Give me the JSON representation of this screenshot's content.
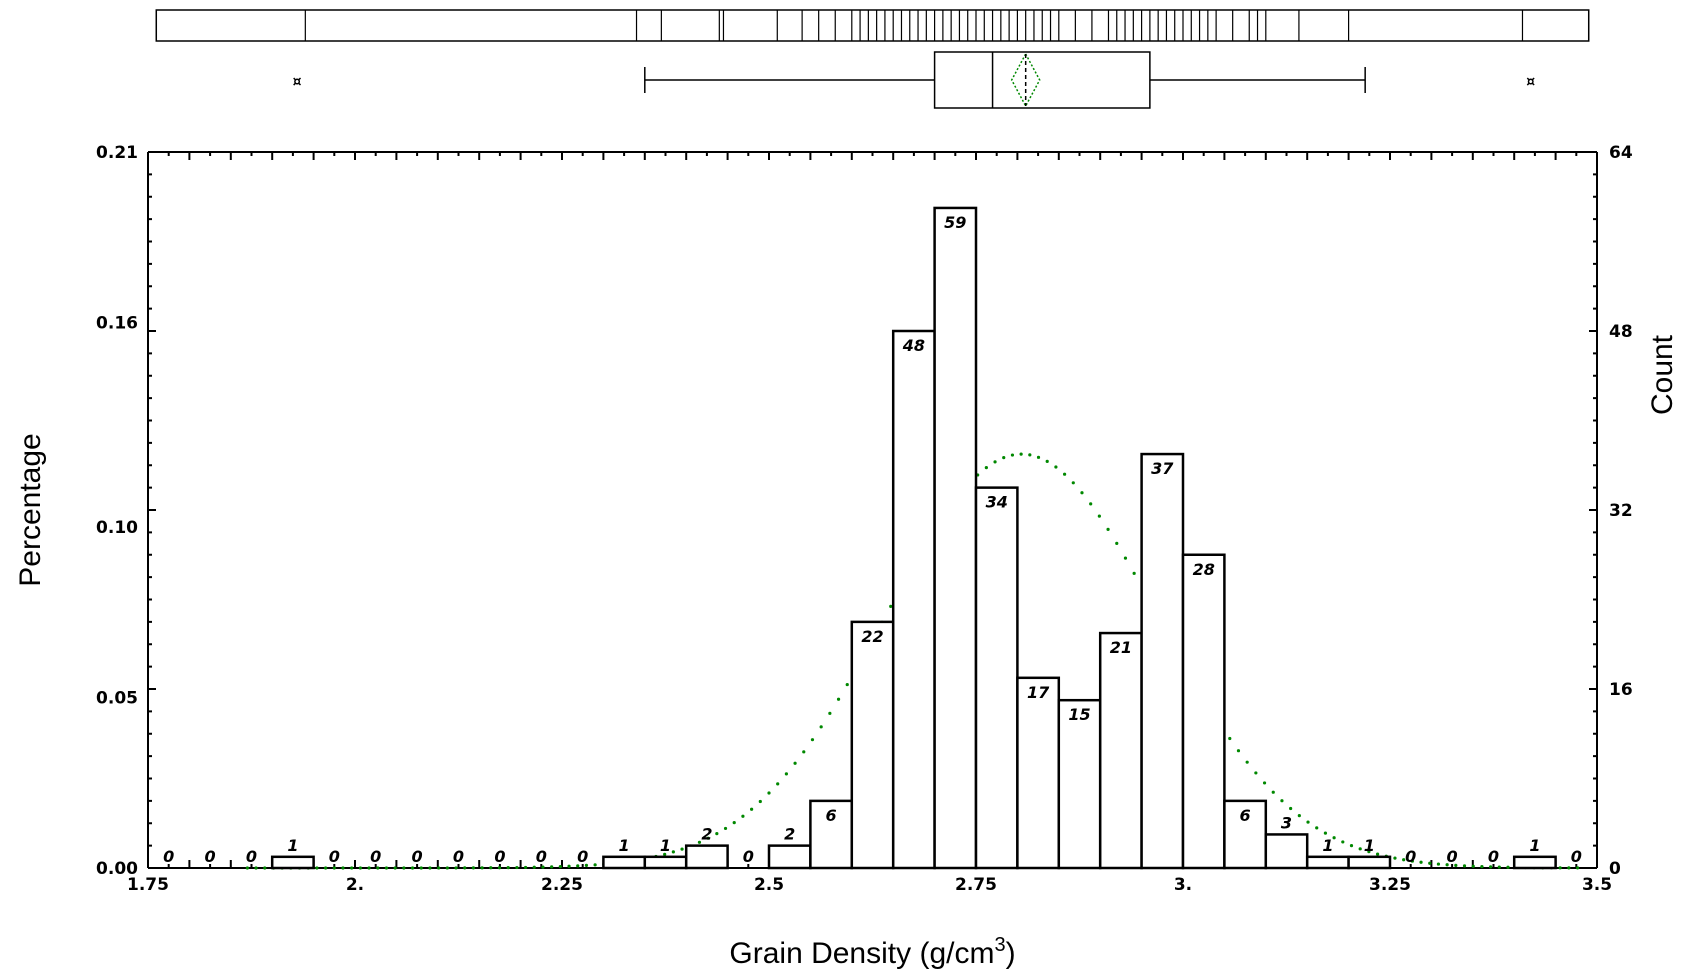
{
  "chart_data": {
    "type": "bar",
    "xlabel": "Grain Density (g/cm",
    "xlabel_superscript": "3",
    "xlabel_suffix": ")",
    "ylabel_left": "Percentage",
    "ylabel_right": "Count",
    "xlim": [
      1.75,
      3.5
    ],
    "ylim_left": [
      0,
      0.21
    ],
    "ylim_right": [
      0,
      64
    ],
    "x_ticks": [
      {
        "value": 1.75,
        "label": "1.75"
      },
      {
        "value": 2.0,
        "label": "2."
      },
      {
        "value": 2.25,
        "label": "2.25"
      },
      {
        "value": 2.5,
        "label": "2.5"
      },
      {
        "value": 2.75,
        "label": "2.75"
      },
      {
        "value": 3.0,
        "label": "3."
      },
      {
        "value": 3.25,
        "label": "3.25"
      },
      {
        "value": 3.5,
        "label": "3.5"
      }
    ],
    "y_left_ticks": [
      {
        "value": 0,
        "label": "0.00"
      },
      {
        "value": 0.05,
        "label": "0.05"
      },
      {
        "value": 0.1,
        "label": "0.10"
      },
      {
        "value": 0.16,
        "label": "0.16"
      },
      {
        "value": 0.21,
        "label": "0.21"
      }
    ],
    "y_right_ticks": [
      {
        "value": 0,
        "label": "0"
      },
      {
        "value": 16,
        "label": "16"
      },
      {
        "value": 32,
        "label": "32"
      },
      {
        "value": 48,
        "label": "48"
      },
      {
        "value": 64,
        "label": "64"
      }
    ],
    "bin_width": 0.05,
    "bins": [
      {
        "start": 1.75,
        "count": 0,
        "label": "0"
      },
      {
        "start": 1.8,
        "count": 0,
        "label": "0"
      },
      {
        "start": 1.85,
        "count": 0,
        "label": "0"
      },
      {
        "start": 1.9,
        "count": 1,
        "label": "1"
      },
      {
        "start": 1.95,
        "count": 0,
        "label": "0"
      },
      {
        "start": 2.0,
        "count": 0,
        "label": "0"
      },
      {
        "start": 2.05,
        "count": 0,
        "label": "0"
      },
      {
        "start": 2.1,
        "count": 0,
        "label": "0"
      },
      {
        "start": 2.15,
        "count": 0,
        "label": "0"
      },
      {
        "start": 2.2,
        "count": 0,
        "label": "0"
      },
      {
        "start": 2.25,
        "count": 0,
        "label": "0"
      },
      {
        "start": 2.3,
        "count": 1,
        "label": "1"
      },
      {
        "start": 2.35,
        "count": 1,
        "label": "1"
      },
      {
        "start": 2.4,
        "count": 2,
        "label": "2"
      },
      {
        "start": 2.45,
        "count": 0,
        "label": "0"
      },
      {
        "start": 2.5,
        "count": 2,
        "label": "2"
      },
      {
        "start": 2.55,
        "count": 6,
        "label": "6"
      },
      {
        "start": 2.6,
        "count": 22,
        "label": "22"
      },
      {
        "start": 2.65,
        "count": 48,
        "label": "48"
      },
      {
        "start": 2.7,
        "count": 59,
        "label": "59"
      },
      {
        "start": 2.75,
        "count": 34,
        "label": "34"
      },
      {
        "start": 2.8,
        "count": 17,
        "label": "17"
      },
      {
        "start": 2.85,
        "count": 15,
        "label": "15"
      },
      {
        "start": 2.9,
        "count": 21,
        "label": "21"
      },
      {
        "start": 2.95,
        "count": 37,
        "label": "37"
      },
      {
        "start": 3.0,
        "count": 28,
        "label": "28"
      },
      {
        "start": 3.05,
        "count": 6,
        "label": "6"
      },
      {
        "start": 3.1,
        "count": 3,
        "label": "3"
      },
      {
        "start": 3.15,
        "count": 1,
        "label": "1"
      },
      {
        "start": 3.2,
        "count": 1,
        "label": "1"
      },
      {
        "start": 3.25,
        "count": 0,
        "label": "0"
      },
      {
        "start": 3.3,
        "count": 0,
        "label": "0"
      },
      {
        "start": 3.35,
        "count": 0,
        "label": "0"
      },
      {
        "start": 3.4,
        "count": 1,
        "label": "1"
      },
      {
        "start": 3.45,
        "count": 0,
        "label": "0"
      }
    ],
    "normal_curve": {
      "mean": 2.805,
      "sd": 0.165,
      "style": "dotted",
      "color": "#008800"
    },
    "boxplot": {
      "whisker_low": 2.35,
      "q1": 2.7,
      "median": 2.77,
      "mean": 2.81,
      "q3": 2.96,
      "whisker_high": 3.22,
      "outliers": [
        1.93,
        3.42
      ]
    },
    "quantile_strip": {
      "range": [
        1.76,
        3.49
      ],
      "lines": [
        1.94,
        2.34,
        2.37,
        2.44,
        2.445,
        2.51,
        2.54,
        2.56,
        2.58,
        2.6,
        2.61,
        2.62,
        2.63,
        2.64,
        2.65,
        2.66,
        2.67,
        2.68,
        2.69,
        2.7,
        2.71,
        2.72,
        2.73,
        2.74,
        2.75,
        2.76,
        2.77,
        2.78,
        2.79,
        2.8,
        2.81,
        2.82,
        2.83,
        2.84,
        2.85,
        2.87,
        2.89,
        2.91,
        2.92,
        2.93,
        2.94,
        2.95,
        2.96,
        2.97,
        2.98,
        2.99,
        3.0,
        3.01,
        3.02,
        3.03,
        3.04,
        3.06,
        3.08,
        3.09,
        3.1,
        3.14,
        3.2,
        3.41
      ]
    },
    "colors": {
      "bars": "#000000",
      "curve": "#008800",
      "background": "#ffffff"
    },
    "grid": false,
    "legend": "none"
  }
}
